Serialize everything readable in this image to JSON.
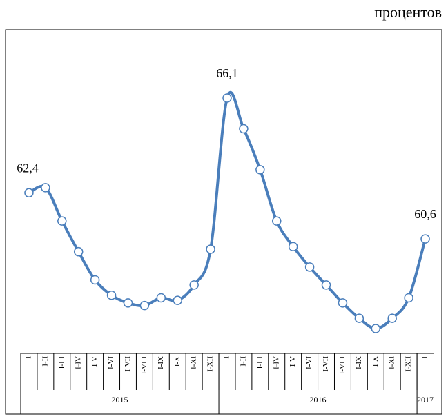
{
  "chart_data": {
    "type": "line",
    "unit": "процентов",
    "categories": [
      "I",
      "I-II",
      "I-III",
      "I-IV",
      "I-V",
      "I-VI",
      "I-VII",
      "I-VIII",
      "I-IX",
      "I-X",
      "I-XI",
      "I-XII",
      "I",
      "I-II",
      "I-III",
      "I-IV",
      "I-V",
      "I-VI",
      "I-VII",
      "I-VIII",
      "I-IX",
      "I-X",
      "I-XI",
      "I-XII",
      "I"
    ],
    "groups": [
      {
        "label": "2015",
        "count": 12
      },
      {
        "label": "2016",
        "count": 12
      },
      {
        "label": "2017",
        "count": 1
      }
    ],
    "series": [
      {
        "color": "#4a7ebb",
        "values": [
          62.4,
          62.6,
          61.3,
          60.1,
          59.0,
          58.4,
          58.1,
          58.0,
          58.3,
          58.2,
          58.8,
          60.2,
          66.1,
          64.9,
          63.3,
          61.3,
          60.3,
          59.5,
          58.8,
          58.1,
          57.5,
          57.1,
          57.5,
          58.3,
          60.6
        ],
        "value_labels": [
          "62,4",
          null,
          null,
          null,
          null,
          null,
          null,
          null,
          null,
          null,
          null,
          null,
          "66,1",
          null,
          null,
          null,
          null,
          null,
          null,
          null,
          null,
          null,
          null,
          null,
          "60,6"
        ]
      }
    ]
  }
}
